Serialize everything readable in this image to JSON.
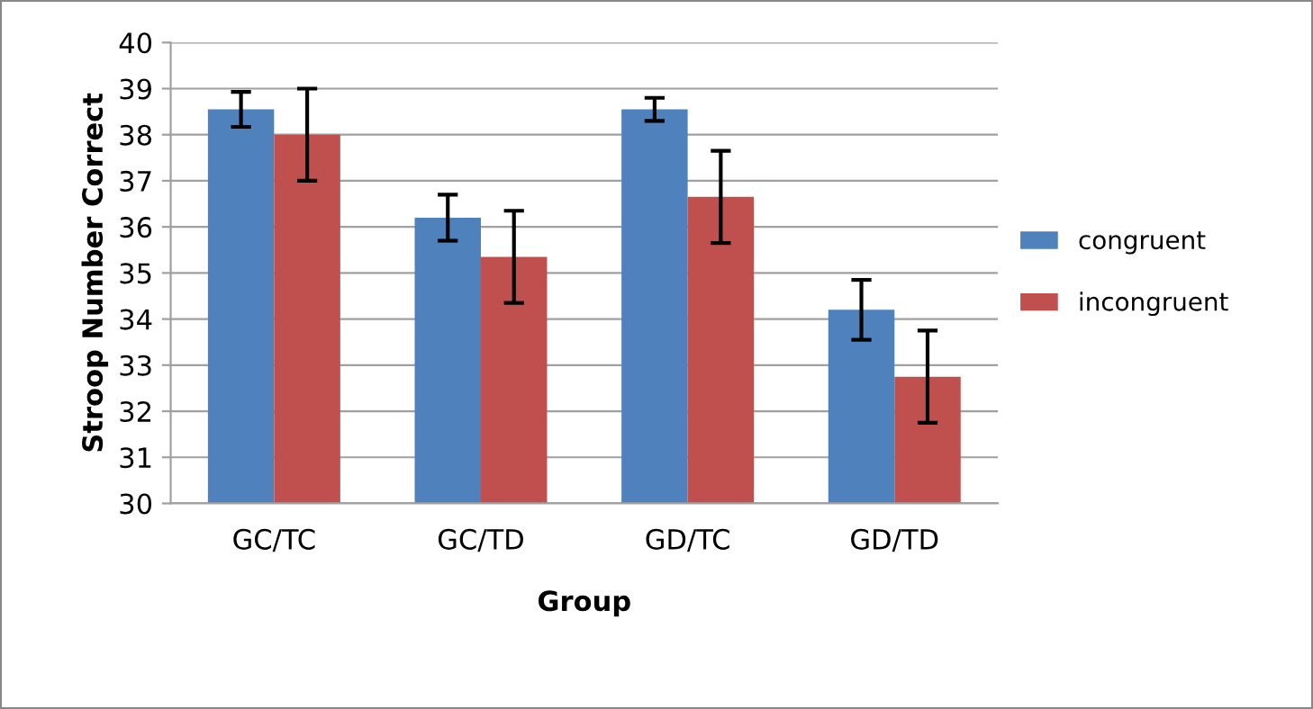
{
  "chart_data": {
    "type": "bar",
    "xlabel": "Group",
    "ylabel": "Stroop Number Correct",
    "categories": [
      "GC/TC",
      "GC/TD",
      "GD/TC",
      "GD/TD"
    ],
    "series": [
      {
        "name": "congruent",
        "color": "#4f81bd",
        "values": [
          38.55,
          36.2,
          38.55,
          34.2
        ],
        "errors": [
          0.38,
          0.5,
          0.25,
          0.65
        ]
      },
      {
        "name": "incongruent",
        "color": "#c0504d",
        "values": [
          38.0,
          35.35,
          36.65,
          32.75
        ],
        "errors": [
          1.0,
          1.0,
          1.0,
          1.0
        ]
      }
    ],
    "ylim": [
      30,
      40
    ],
    "yticks": [
      30,
      31,
      32,
      33,
      34,
      35,
      36,
      37,
      38,
      39,
      40
    ],
    "grid": "y",
    "legend": "right"
  }
}
